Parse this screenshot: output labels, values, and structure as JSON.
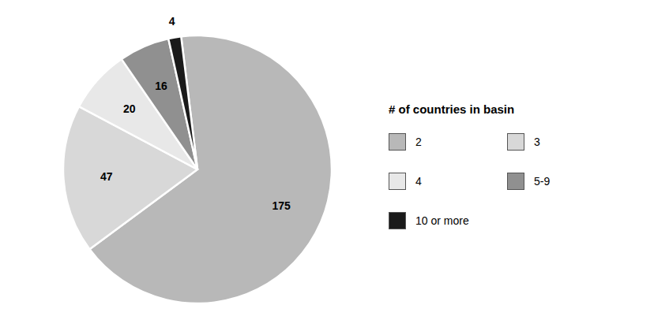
{
  "chart_data": {
    "type": "pie",
    "categories": [
      "2",
      "3",
      "4",
      "5-9",
      "10 or more"
    ],
    "values": [
      175,
      47,
      20,
      16,
      4
    ],
    "colors": [
      "#b8b8b8",
      "#d8d8d8",
      "#e8e8e8",
      "#909090",
      "#1a1a1a"
    ],
    "legend_title": "# of countries in basin",
    "legend": "right",
    "data_labels": true
  }
}
